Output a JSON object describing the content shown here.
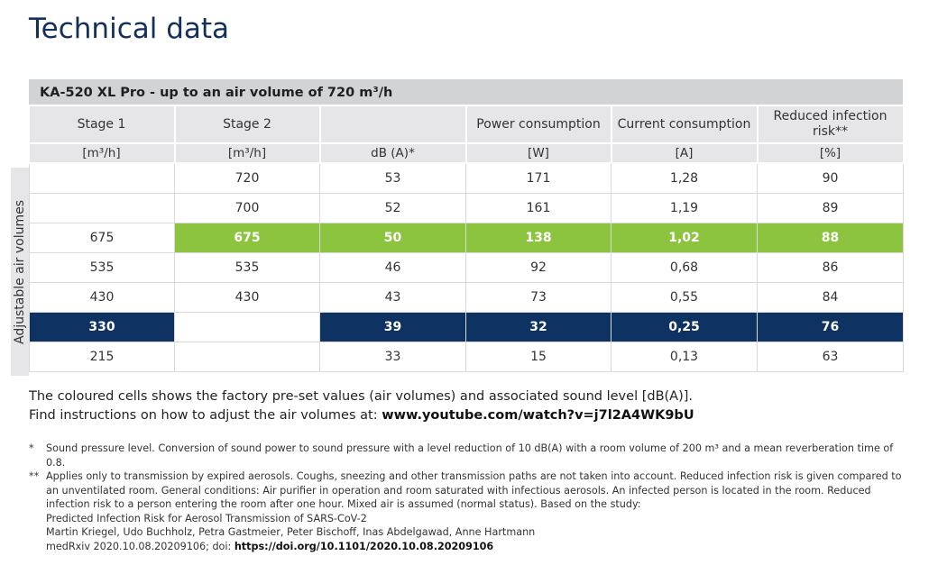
{
  "page_title": "Technical data",
  "table": {
    "title": "KA-520 XL Pro - up to an air volume of 720 m³/h",
    "side_label": "Adjustable air volumes",
    "columns": [
      {
        "header": "Stage 1",
        "unit": "[m³/h]"
      },
      {
        "header": "Stage 2",
        "unit": "[m³/h]"
      },
      {
        "header": "",
        "unit": "dB (A)*"
      },
      {
        "header": "Power consumption",
        "unit": "[W]"
      },
      {
        "header": "Current consumption",
        "unit": "[A]"
      },
      {
        "header": "Reduced infection risk**",
        "unit": "[%]"
      }
    ],
    "rows": [
      {
        "cells": [
          "",
          "720",
          "53",
          "171",
          "1,28",
          "90"
        ]
      },
      {
        "cells": [
          "",
          "700",
          "52",
          "161",
          "1,19",
          "89"
        ]
      },
      {
        "cells": [
          "675",
          "675",
          "50",
          "138",
          "1,02",
          "88"
        ]
      },
      {
        "cells": [
          "535",
          "535",
          "46",
          "92",
          "0,68",
          "86"
        ]
      },
      {
        "cells": [
          "430",
          "430",
          "43",
          "73",
          "0,55",
          "84"
        ]
      },
      {
        "cells": [
          "330",
          "",
          "39",
          "32",
          "0,25",
          "76"
        ]
      },
      {
        "cells": [
          "215",
          "",
          "33",
          "15",
          "0,13",
          "63"
        ]
      }
    ],
    "highlight_colors": {
      "green": "#8dc43f",
      "navy": "#0e3362"
    }
  },
  "note": {
    "line1": "The coloured cells shows the factory pre-set values (air volumes) and associated sound level [dB(A)].",
    "line2_prefix": "Find instructions on how to adjust the air volumes at: ",
    "line2_link": "www.youtube.com/watch?v=j7l2A4WK9bU"
  },
  "footnotes": {
    "fn1_mark": "*",
    "fn1_text": "Sound pressure level. Conversion of sound power to sound pressure with a level reduction of 10 dB(A) with a room volume of 200 m³ and a mean reverberation time of 0.8.",
    "fn2_mark": "**",
    "fn2_text": "Applies only to transmission by expired aerosols. Coughs, sneezing and other transmission paths are not taken into account. Reduced infection risk is given compared to an unventilated room. General conditions: Air purifier in operation and room saturated with infectious aerosols. An infected person is located in the room. Reduced infection risk to a person entering the room after one hour. Mixed air is assumed (normal status). Based on the study:",
    "study_title": "Predicted Infection Risk for Aerosol Transmission of SARS-CoV-2",
    "study_authors": "Martin Kriegel, Udo Buchholz, Petra Gastmeier, Peter Bischoff, Inas Abdelgawad, Anne Hartmann",
    "study_ref_prefix": "medRxiv 2020.10.08.20209106; doi: ",
    "study_doi_link": "https://doi.org/10.1101/2020.10.08.20209106"
  }
}
